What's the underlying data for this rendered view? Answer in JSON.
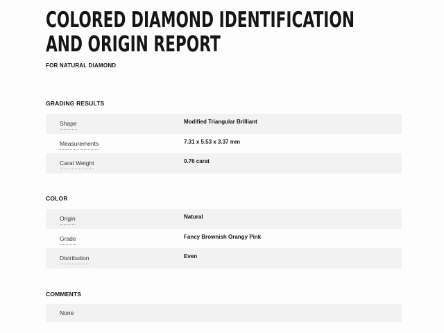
{
  "header": {
    "title_line1": "COLORED DIAMOND IDENTIFICATION",
    "title_line2": "AND ORIGIN REPORT",
    "subtitle": "FOR NATURAL DIAMOND"
  },
  "grading_results": {
    "title": "GRADING RESULTS",
    "rows": [
      {
        "label": "Shape",
        "value": "Modified Triangular Brilliant"
      },
      {
        "label": "Measurements",
        "value": "7.31 x 5.53 x 3.37 mm"
      },
      {
        "label": "Carat Weight",
        "value": "0.76 carat"
      }
    ]
  },
  "color": {
    "title": "COLOR",
    "rows": [
      {
        "label": "Origin",
        "value": "Natural"
      },
      {
        "label": "Grade",
        "value": "Fancy Brownish Orangy Pink"
      },
      {
        "label": "Distribution",
        "value": "Even"
      }
    ]
  },
  "comments": {
    "title": "COMMENTS",
    "text": "None"
  },
  "colors": {
    "row_shade": "#f2f2f2",
    "background": "#fdfdfd"
  }
}
